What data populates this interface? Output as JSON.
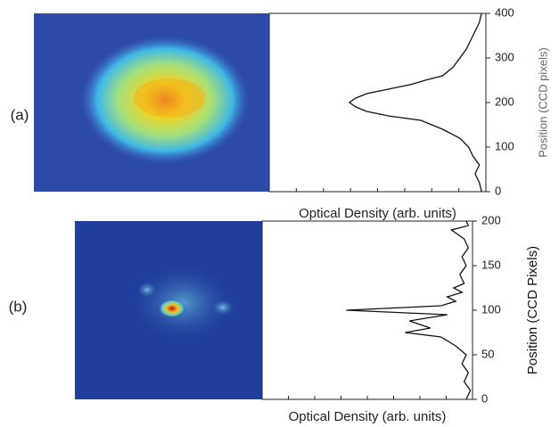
{
  "chart_data": [
    {
      "type": "line",
      "label": "(a)",
      "x_label": "Optical Density (arb. units)",
      "y_label": "Position (CCD pixels)",
      "positions": [
        0,
        20,
        40,
        60,
        80,
        100,
        120,
        140,
        160,
        170,
        180,
        190,
        200,
        210,
        220,
        230,
        240,
        250,
        260,
        280,
        300,
        320,
        340,
        360,
        380,
        400
      ],
      "values": [
        0.02,
        0.03,
        0.05,
        0.03,
        0.06,
        0.08,
        0.12,
        0.2,
        0.3,
        0.45,
        0.55,
        0.6,
        0.63,
        0.6,
        0.55,
        0.45,
        0.35,
        0.28,
        0.2,
        0.15,
        0.12,
        0.09,
        0.07,
        0.05,
        0.03,
        0.02
      ],
      "ylim": [
        0,
        400
      ],
      "yticks": [
        0,
        100,
        200,
        300,
        400
      ],
      "xlim": [
        1,
        0
      ],
      "color": "#111111"
    },
    {
      "type": "line",
      "label": "(b)",
      "x_label": "Optical Density (arb. units)",
      "y_label": "Position (CCD Pixels)",
      "positions": [
        0,
        10,
        20,
        30,
        40,
        50,
        60,
        70,
        75,
        80,
        88,
        95,
        100,
        105,
        110,
        115,
        120,
        125,
        130,
        140,
        150,
        160,
        170,
        180,
        190,
        195,
        200
      ],
      "values": [
        0.03,
        0.01,
        0.04,
        0.02,
        0.05,
        0.03,
        0.08,
        0.15,
        0.32,
        0.2,
        0.3,
        0.12,
        0.6,
        0.15,
        0.08,
        0.12,
        0.05,
        0.09,
        0.04,
        0.06,
        0.03,
        0.05,
        0.02,
        0.04,
        0.1,
        0.02,
        0.03
      ],
      "ylim": [
        0,
        200
      ],
      "yticks": [
        0,
        50,
        100,
        150,
        200
      ],
      "xlim": [
        1,
        0
      ],
      "color": "#111111"
    }
  ]
}
